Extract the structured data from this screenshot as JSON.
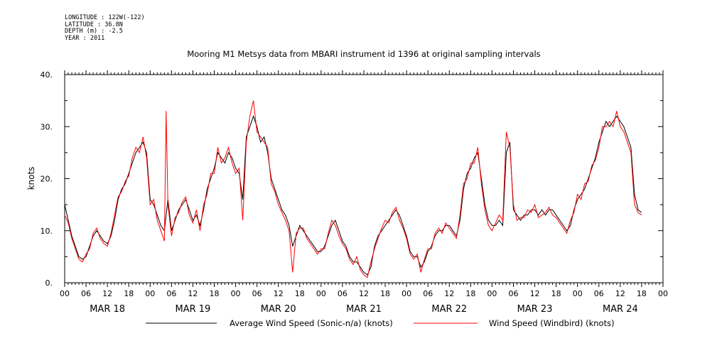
{
  "header": {
    "longitude": "LONGITUDE : 122W(-122)",
    "latitude": "LATITUDE : 36.8N",
    "depth": "DEPTH (m) : -2.5",
    "year": "YEAR : 2011"
  },
  "chart_data": {
    "type": "line",
    "title": "Mooring M1 Metsys data from MBARI instrument id 1396 at original sampling intervals",
    "ylabel": "knots",
    "ylim": [
      0,
      40
    ],
    "yticks": [
      0,
      10,
      20,
      30,
      40
    ],
    "ytick_labels": [
      "0.",
      "10.",
      "20.",
      "30.",
      "40."
    ],
    "xlim_hours": [
      0,
      168
    ],
    "hour_labels": [
      "00",
      "06",
      "12",
      "18",
      "00",
      "06",
      "12",
      "18",
      "00",
      "06",
      "12",
      "18",
      "00",
      "06",
      "12",
      "18",
      "00",
      "06",
      "12",
      "18",
      "00",
      "06",
      "12",
      "18",
      "00",
      "06",
      "12",
      "18",
      "00"
    ],
    "day_labels": [
      "MAR 18",
      "MAR 19",
      "MAR 20",
      "MAR 21",
      "MAR 22",
      "MAR 23",
      "MAR 24"
    ],
    "grid": false,
    "legend_position": "bottom",
    "series": [
      {
        "name": "Average Wind Speed (Sonic-n/a) (knots)",
        "color": "#000000",
        "points": [
          [
            0,
            15
          ],
          [
            1,
            12
          ],
          [
            2,
            9
          ],
          [
            3,
            7
          ],
          [
            4,
            5
          ],
          [
            5,
            4.5
          ],
          [
            6,
            5
          ],
          [
            7,
            7
          ],
          [
            8,
            9
          ],
          [
            9,
            10
          ],
          [
            10,
            9
          ],
          [
            11,
            8
          ],
          [
            12,
            7.5
          ],
          [
            13,
            9
          ],
          [
            14,
            12
          ],
          [
            15,
            16
          ],
          [
            16,
            18
          ],
          [
            17,
            19
          ],
          [
            18,
            21
          ],
          [
            19,
            23
          ],
          [
            20,
            25
          ],
          [
            21,
            26
          ],
          [
            22,
            27
          ],
          [
            23,
            25
          ],
          [
            24,
            16
          ],
          [
            25,
            15
          ],
          [
            26,
            13
          ],
          [
            27,
            11
          ],
          [
            28,
            10
          ],
          [
            29,
            16
          ],
          [
            30,
            10
          ],
          [
            31,
            12
          ],
          [
            32,
            14
          ],
          [
            33,
            15
          ],
          [
            34,
            16
          ],
          [
            35,
            14
          ],
          [
            36,
            12
          ],
          [
            37,
            13
          ],
          [
            38,
            11
          ],
          [
            39,
            14
          ],
          [
            40,
            18
          ],
          [
            41,
            20
          ],
          [
            42,
            22
          ],
          [
            43,
            25
          ],
          [
            44,
            24
          ],
          [
            45,
            23
          ],
          [
            46,
            25
          ],
          [
            47,
            24
          ],
          [
            48,
            22
          ],
          [
            49,
            21
          ],
          [
            50,
            16
          ],
          [
            51,
            28
          ],
          [
            52,
            30
          ],
          [
            53,
            32
          ],
          [
            54,
            30
          ],
          [
            55,
            27
          ],
          [
            56,
            28
          ],
          [
            57,
            25
          ],
          [
            58,
            20
          ],
          [
            59,
            18
          ],
          [
            60,
            16
          ],
          [
            61,
            14
          ],
          [
            62,
            13
          ],
          [
            63,
            11
          ],
          [
            64,
            7
          ],
          [
            65,
            9
          ],
          [
            66,
            11
          ],
          [
            67,
            10
          ],
          [
            68,
            9
          ],
          [
            69,
            8
          ],
          [
            70,
            7
          ],
          [
            71,
            6
          ],
          [
            72,
            6
          ],
          [
            73,
            7
          ],
          [
            74,
            9
          ],
          [
            75,
            11
          ],
          [
            76,
            12
          ],
          [
            77,
            10
          ],
          [
            78,
            8
          ],
          [
            79,
            7
          ],
          [
            80,
            5
          ],
          [
            81,
            4
          ],
          [
            82,
            4
          ],
          [
            83,
            3
          ],
          [
            84,
            2
          ],
          [
            85,
            1.5
          ],
          [
            86,
            3
          ],
          [
            87,
            7
          ],
          [
            88,
            9
          ],
          [
            89,
            10
          ],
          [
            90,
            11
          ],
          [
            91,
            12
          ],
          [
            92,
            13
          ],
          [
            93,
            14
          ],
          [
            94,
            13
          ],
          [
            95,
            11
          ],
          [
            96,
            9
          ],
          [
            97,
            6
          ],
          [
            98,
            5
          ],
          [
            99,
            5
          ],
          [
            100,
            3
          ],
          [
            101,
            4
          ],
          [
            102,
            6
          ],
          [
            103,
            7
          ],
          [
            104,
            9
          ],
          [
            105,
            10
          ],
          [
            106,
            10
          ],
          [
            107,
            11
          ],
          [
            108,
            11
          ],
          [
            109,
            10
          ],
          [
            110,
            9
          ],
          [
            111,
            12
          ],
          [
            112,
            18
          ],
          [
            113,
            21
          ],
          [
            114,
            22
          ],
          [
            115,
            24
          ],
          [
            116,
            25
          ],
          [
            117,
            20
          ],
          [
            118,
            15
          ],
          [
            119,
            12
          ],
          [
            120,
            11
          ],
          [
            121,
            11
          ],
          [
            122,
            12
          ],
          [
            123,
            11
          ],
          [
            124,
            25
          ],
          [
            125,
            27
          ],
          [
            126,
            14
          ],
          [
            127,
            13
          ],
          [
            128,
            12
          ],
          [
            129,
            13
          ],
          [
            130,
            13
          ],
          [
            131,
            14
          ],
          [
            132,
            14
          ],
          [
            133,
            13
          ],
          [
            134,
            14
          ],
          [
            135,
            13
          ],
          [
            136,
            14
          ],
          [
            137,
            14
          ],
          [
            138,
            13
          ],
          [
            139,
            12
          ],
          [
            140,
            11
          ],
          [
            141,
            10
          ],
          [
            142,
            11
          ],
          [
            143,
            14
          ],
          [
            144,
            16
          ],
          [
            145,
            17
          ],
          [
            146,
            18
          ],
          [
            147,
            20
          ],
          [
            148,
            22
          ],
          [
            149,
            24
          ],
          [
            150,
            27
          ],
          [
            151,
            29
          ],
          [
            152,
            31
          ],
          [
            153,
            30
          ],
          [
            154,
            31
          ],
          [
            155,
            32
          ],
          [
            156,
            31
          ],
          [
            157,
            30
          ],
          [
            158,
            28
          ],
          [
            159,
            26
          ],
          [
            160,
            17
          ],
          [
            161,
            14
          ],
          [
            162,
            13.5
          ]
        ]
      },
      {
        "name": "Wind Speed (Windbird) (knots)",
        "color": "#ff0000",
        "points": [
          [
            0,
            13
          ],
          [
            1,
            11.5
          ],
          [
            2,
            8.5
          ],
          [
            3,
            6.5
          ],
          [
            4,
            4.5
          ],
          [
            5,
            4
          ],
          [
            6,
            5.5
          ],
          [
            7,
            6.5
          ],
          [
            8,
            9.5
          ],
          [
            9,
            10.5
          ],
          [
            10,
            8.5
          ],
          [
            11,
            7.5
          ],
          [
            12,
            7
          ],
          [
            13,
            9.5
          ],
          [
            14,
            13
          ],
          [
            15,
            16.5
          ],
          [
            16,
            17.5
          ],
          [
            17,
            19.5
          ],
          [
            18,
            20.5
          ],
          [
            19,
            24
          ],
          [
            20,
            26
          ],
          [
            21,
            25
          ],
          [
            22,
            28
          ],
          [
            23,
            24
          ],
          [
            24,
            15
          ],
          [
            25,
            16
          ],
          [
            26,
            12
          ],
          [
            27,
            10
          ],
          [
            28,
            8
          ],
          [
            28.5,
            33
          ],
          [
            29,
            15
          ],
          [
            30,
            9
          ],
          [
            31,
            12.5
          ],
          [
            32,
            13.5
          ],
          [
            33,
            15.5
          ],
          [
            34,
            16.5
          ],
          [
            35,
            13
          ],
          [
            36,
            11.5
          ],
          [
            37,
            14
          ],
          [
            38,
            10
          ],
          [
            39,
            15
          ],
          [
            40,
            17
          ],
          [
            41,
            21
          ],
          [
            42,
            21
          ],
          [
            43,
            26
          ],
          [
            44,
            23
          ],
          [
            45,
            24
          ],
          [
            46,
            26
          ],
          [
            47,
            23
          ],
          [
            48,
            21
          ],
          [
            49,
            22
          ],
          [
            50,
            12
          ],
          [
            51,
            27
          ],
          [
            52,
            32
          ],
          [
            53,
            35
          ],
          [
            54,
            29
          ],
          [
            55,
            28
          ],
          [
            56,
            27
          ],
          [
            57,
            26
          ],
          [
            58,
            19
          ],
          [
            59,
            17.5
          ],
          [
            60,
            15
          ],
          [
            61,
            13.5
          ],
          [
            62,
            12
          ],
          [
            63,
            10
          ],
          [
            64,
            2
          ],
          [
            65,
            9.5
          ],
          [
            66,
            10.5
          ],
          [
            67,
            10.5
          ],
          [
            68,
            8.5
          ],
          [
            69,
            7.5
          ],
          [
            70,
            6.5
          ],
          [
            71,
            5.5
          ],
          [
            72,
            6.5
          ],
          [
            73,
            6.5
          ],
          [
            74,
            9.5
          ],
          [
            75,
            12
          ],
          [
            76,
            11
          ],
          [
            77,
            9
          ],
          [
            78,
            7.5
          ],
          [
            79,
            6.5
          ],
          [
            80,
            4.5
          ],
          [
            81,
            3.5
          ],
          [
            82,
            5
          ],
          [
            83,
            2.5
          ],
          [
            84,
            1.5
          ],
          [
            85,
            1
          ],
          [
            86,
            4
          ],
          [
            87,
            6.5
          ],
          [
            88,
            8.5
          ],
          [
            89,
            10.5
          ],
          [
            90,
            12
          ],
          [
            91,
            11.5
          ],
          [
            92,
            13.5
          ],
          [
            93,
            14.5
          ],
          [
            94,
            12
          ],
          [
            95,
            10.5
          ],
          [
            96,
            8.5
          ],
          [
            97,
            5.5
          ],
          [
            98,
            4.5
          ],
          [
            99,
            5.5
          ],
          [
            100,
            2
          ],
          [
            101,
            4.5
          ],
          [
            102,
            6.5
          ],
          [
            103,
            6.5
          ],
          [
            104,
            9.5
          ],
          [
            105,
            10.5
          ],
          [
            106,
            9.5
          ],
          [
            107,
            11.5
          ],
          [
            108,
            10.5
          ],
          [
            109,
            9.5
          ],
          [
            110,
            8.5
          ],
          [
            111,
            13
          ],
          [
            112,
            19
          ],
          [
            113,
            20
          ],
          [
            114,
            23
          ],
          [
            115,
            23
          ],
          [
            116,
            26
          ],
          [
            117,
            19
          ],
          [
            118,
            14
          ],
          [
            119,
            11
          ],
          [
            120,
            10
          ],
          [
            121,
            11.5
          ],
          [
            122,
            13
          ],
          [
            123,
            12
          ],
          [
            124,
            29
          ],
          [
            125,
            26
          ],
          [
            126,
            15
          ],
          [
            127,
            12
          ],
          [
            128,
            12.5
          ],
          [
            129,
            12.5
          ],
          [
            130,
            14
          ],
          [
            131,
            13.5
          ],
          [
            132,
            15
          ],
          [
            133,
            12.5
          ],
          [
            134,
            13
          ],
          [
            135,
            13.5
          ],
          [
            136,
            14.5
          ],
          [
            137,
            13
          ],
          [
            138,
            12.5
          ],
          [
            139,
            11.5
          ],
          [
            140,
            10.5
          ],
          [
            141,
            9.5
          ],
          [
            142,
            12
          ],
          [
            143,
            13.5
          ],
          [
            144,
            17
          ],
          [
            145,
            16
          ],
          [
            146,
            19
          ],
          [
            147,
            19.5
          ],
          [
            148,
            22.5
          ],
          [
            149,
            23.5
          ],
          [
            150,
            26
          ],
          [
            151,
            30
          ],
          [
            152,
            30
          ],
          [
            153,
            31
          ],
          [
            154,
            30
          ],
          [
            155,
            33
          ],
          [
            156,
            30
          ],
          [
            157,
            29
          ],
          [
            158,
            27
          ],
          [
            159,
            25
          ],
          [
            160,
            15
          ],
          [
            161,
            13.5
          ],
          [
            162,
            13
          ]
        ]
      }
    ]
  }
}
